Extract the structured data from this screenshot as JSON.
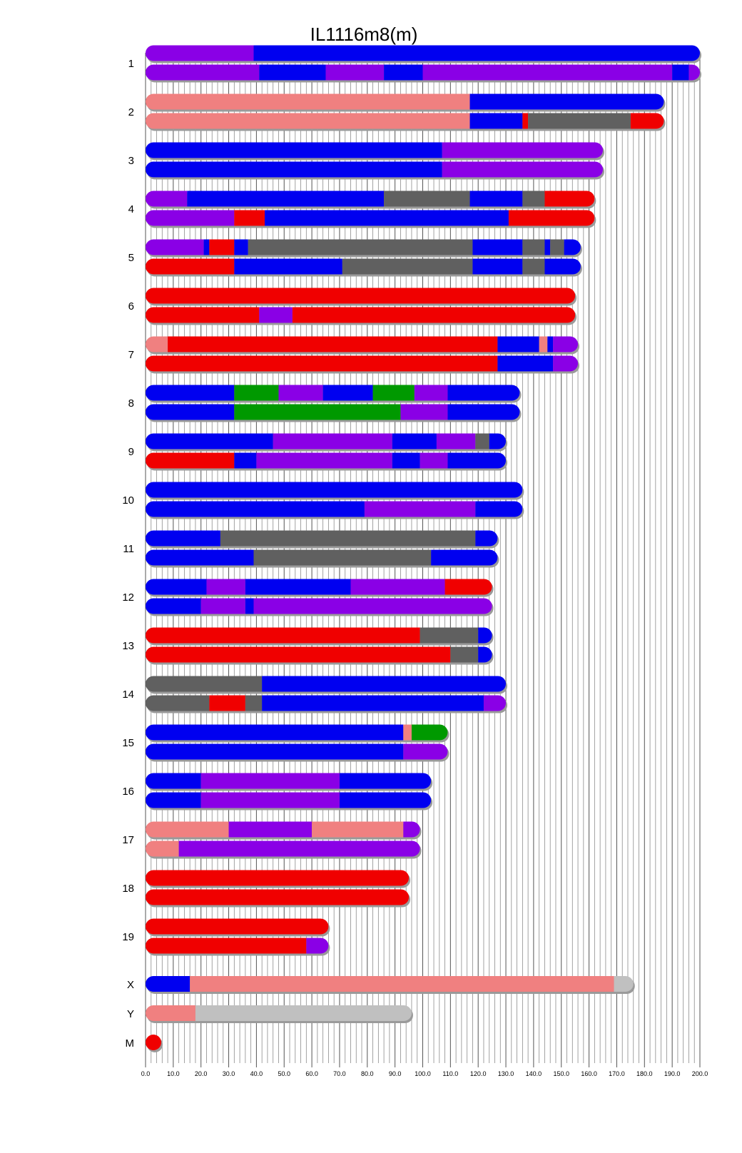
{
  "chart_data": {
    "type": "bar",
    "title": "IL1116m8(m)",
    "xlim": [
      0,
      200
    ],
    "x_ticks": [
      "0.0",
      "10.0",
      "20.0",
      "30.0",
      "40.0",
      "50.0",
      "60.0",
      "70.0",
      "80.0",
      "90.0",
      "100.0",
      "110.0",
      "120.0",
      "130.0",
      "140.0",
      "150.0",
      "160.0",
      "170.0",
      "180.0",
      "190.0",
      "200.0"
    ],
    "colors": {
      "P": "#8a00e6",
      "B": "#0000f0",
      "S": "#f08080",
      "R": "#f00000",
      "G": "#606060",
      "N": "#009900",
      "L": "#c0c0c0"
    },
    "chromosomes": [
      {
        "label": "1",
        "tracks": [
          [
            [
              0,
              39,
              "P"
            ],
            [
              39,
              200,
              "B"
            ]
          ],
          [
            [
              0,
              41,
              "P"
            ],
            [
              41,
              65,
              "B"
            ],
            [
              65,
              86,
              "P"
            ],
            [
              86,
              100,
              "B"
            ],
            [
              100,
              190,
              "P"
            ],
            [
              190,
              196,
              "B"
            ],
            [
              196,
              200,
              "P"
            ]
          ]
        ]
      },
      {
        "label": "2",
        "tracks": [
          [
            [
              0,
              117,
              "S"
            ],
            [
              117,
              187,
              "B"
            ]
          ],
          [
            [
              0,
              117,
              "S"
            ],
            [
              117,
              136,
              "B"
            ],
            [
              136,
              138,
              "R"
            ],
            [
              138,
              175,
              "G"
            ],
            [
              175,
              187,
              "R"
            ]
          ]
        ]
      },
      {
        "label": "3",
        "tracks": [
          [
            [
              0,
              107,
              "B"
            ],
            [
              107,
              165,
              "P"
            ]
          ],
          [
            [
              0,
              107,
              "B"
            ],
            [
              107,
              165,
              "P"
            ]
          ]
        ]
      },
      {
        "label": "4",
        "tracks": [
          [
            [
              0,
              15,
              "P"
            ],
            [
              15,
              86,
              "B"
            ],
            [
              86,
              117,
              "G"
            ],
            [
              117,
              136,
              "B"
            ],
            [
              136,
              144,
              "G"
            ],
            [
              144,
              162,
              "R"
            ]
          ],
          [
            [
              0,
              32,
              "P"
            ],
            [
              32,
              43,
              "R"
            ],
            [
              43,
              131,
              "B"
            ],
            [
              131,
              162,
              "R"
            ]
          ]
        ]
      },
      {
        "label": "5",
        "tracks": [
          [
            [
              0,
              21,
              "P"
            ],
            [
              21,
              23,
              "B"
            ],
            [
              23,
              32,
              "R"
            ],
            [
              32,
              37,
              "B"
            ],
            [
              37,
              118,
              "G"
            ],
            [
              118,
              136,
              "B"
            ],
            [
              136,
              144,
              "G"
            ],
            [
              144,
              146,
              "B"
            ],
            [
              146,
              151,
              "G"
            ],
            [
              151,
              157,
              "B"
            ]
          ],
          [
            [
              0,
              32,
              "R"
            ],
            [
              32,
              71,
              "B"
            ],
            [
              71,
              118,
              "G"
            ],
            [
              118,
              136,
              "B"
            ],
            [
              136,
              144,
              "G"
            ],
            [
              144,
              157,
              "B"
            ]
          ]
        ]
      },
      {
        "label": "6",
        "tracks": [
          [
            [
              0,
              155,
              "R"
            ]
          ],
          [
            [
              0,
              41,
              "R"
            ],
            [
              41,
              53,
              "P"
            ],
            [
              53,
              155,
              "R"
            ]
          ]
        ]
      },
      {
        "label": "7",
        "tracks": [
          [
            [
              0,
              8,
              "S"
            ],
            [
              8,
              127,
              "R"
            ],
            [
              127,
              142,
              "B"
            ],
            [
              142,
              145,
              "S"
            ],
            [
              145,
              147,
              "B"
            ],
            [
              147,
              156,
              "P"
            ]
          ],
          [
            [
              0,
              127,
              "R"
            ],
            [
              127,
              147,
              "B"
            ],
            [
              147,
              156,
              "P"
            ]
          ]
        ]
      },
      {
        "label": "8",
        "tracks": [
          [
            [
              0,
              32,
              "B"
            ],
            [
              32,
              48,
              "N"
            ],
            [
              48,
              64,
              "P"
            ],
            [
              64,
              82,
              "B"
            ],
            [
              82,
              97,
              "N"
            ],
            [
              97,
              109,
              "P"
            ],
            [
              109,
              135,
              "B"
            ]
          ],
          [
            [
              0,
              32,
              "B"
            ],
            [
              32,
              92,
              "N"
            ],
            [
              92,
              109,
              "P"
            ],
            [
              109,
              135,
              "B"
            ]
          ]
        ]
      },
      {
        "label": "9",
        "tracks": [
          [
            [
              0,
              46,
              "B"
            ],
            [
              46,
              89,
              "P"
            ],
            [
              89,
              105,
              "B"
            ],
            [
              105,
              119,
              "P"
            ],
            [
              119,
              124,
              "G"
            ],
            [
              124,
              130,
              "B"
            ]
          ],
          [
            [
              0,
              32,
              "R"
            ],
            [
              32,
              40,
              "B"
            ],
            [
              40,
              89,
              "P"
            ],
            [
              89,
              99,
              "B"
            ],
            [
              99,
              109,
              "P"
            ],
            [
              109,
              130,
              "B"
            ]
          ]
        ]
      },
      {
        "label": "10",
        "tracks": [
          [
            [
              0,
              136,
              "B"
            ]
          ],
          [
            [
              0,
              79,
              "B"
            ],
            [
              79,
              119,
              "P"
            ],
            [
              119,
              136,
              "B"
            ]
          ]
        ]
      },
      {
        "label": "11",
        "tracks": [
          [
            [
              0,
              27,
              "B"
            ],
            [
              27,
              119,
              "G"
            ],
            [
              119,
              127,
              "B"
            ]
          ],
          [
            [
              0,
              39,
              "B"
            ],
            [
              39,
              103,
              "G"
            ],
            [
              103,
              127,
              "B"
            ]
          ]
        ]
      },
      {
        "label": "12",
        "tracks": [
          [
            [
              0,
              22,
              "B"
            ],
            [
              22,
              36,
              "P"
            ],
            [
              36,
              74,
              "B"
            ],
            [
              74,
              108,
              "P"
            ],
            [
              108,
              125,
              "R"
            ]
          ],
          [
            [
              0,
              20,
              "B"
            ],
            [
              20,
              36,
              "P"
            ],
            [
              36,
              39,
              "B"
            ],
            [
              39,
              125,
              "P"
            ]
          ]
        ]
      },
      {
        "label": "13",
        "tracks": [
          [
            [
              0,
              99,
              "R"
            ],
            [
              99,
              120,
              "G"
            ],
            [
              120,
              125,
              "B"
            ]
          ],
          [
            [
              0,
              110,
              "R"
            ],
            [
              110,
              120,
              "G"
            ],
            [
              120,
              125,
              "B"
            ]
          ]
        ]
      },
      {
        "label": "14",
        "tracks": [
          [
            [
              0,
              42,
              "G"
            ],
            [
              42,
              130,
              "B"
            ]
          ],
          [
            [
              0,
              23,
              "G"
            ],
            [
              23,
              36,
              "R"
            ],
            [
              36,
              42,
              "G"
            ],
            [
              42,
              122,
              "B"
            ],
            [
              122,
              130,
              "P"
            ]
          ]
        ]
      },
      {
        "label": "15",
        "tracks": [
          [
            [
              0,
              93,
              "B"
            ],
            [
              93,
              96,
              "S"
            ],
            [
              96,
              109,
              "N"
            ]
          ],
          [
            [
              0,
              93,
              "B"
            ],
            [
              93,
              109,
              "P"
            ]
          ]
        ]
      },
      {
        "label": "16",
        "tracks": [
          [
            [
              0,
              20,
              "B"
            ],
            [
              20,
              70,
              "P"
            ],
            [
              70,
              103,
              "B"
            ]
          ],
          [
            [
              0,
              20,
              "B"
            ],
            [
              20,
              70,
              "P"
            ],
            [
              70,
              103,
              "B"
            ]
          ]
        ]
      },
      {
        "label": "17",
        "tracks": [
          [
            [
              0,
              30,
              "S"
            ],
            [
              30,
              60,
              "P"
            ],
            [
              60,
              93,
              "S"
            ],
            [
              93,
              99,
              "P"
            ]
          ],
          [
            [
              0,
              12,
              "S"
            ],
            [
              12,
              99,
              "P"
            ]
          ]
        ]
      },
      {
        "label": "18",
        "tracks": [
          [
            [
              0,
              95,
              "R"
            ]
          ],
          [
            [
              0,
              95,
              "R"
            ]
          ]
        ]
      },
      {
        "label": "19",
        "tracks": [
          [
            [
              0,
              66,
              "R"
            ]
          ],
          [
            [
              0,
              58,
              "R"
            ],
            [
              58,
              66,
              "P"
            ]
          ]
        ]
      },
      {
        "label": "X",
        "tracks": [
          [
            [
              0,
              16,
              "B"
            ],
            [
              16,
              169,
              "S"
            ],
            [
              169,
              176,
              "L"
            ]
          ]
        ]
      },
      {
        "label": "Y",
        "tracks": [
          [
            [
              0,
              18,
              "S"
            ],
            [
              18,
              96,
              "L"
            ]
          ]
        ]
      },
      {
        "label": "M",
        "tracks": [
          [
            [
              0,
              2.5,
              "R"
            ]
          ]
        ]
      }
    ]
  }
}
